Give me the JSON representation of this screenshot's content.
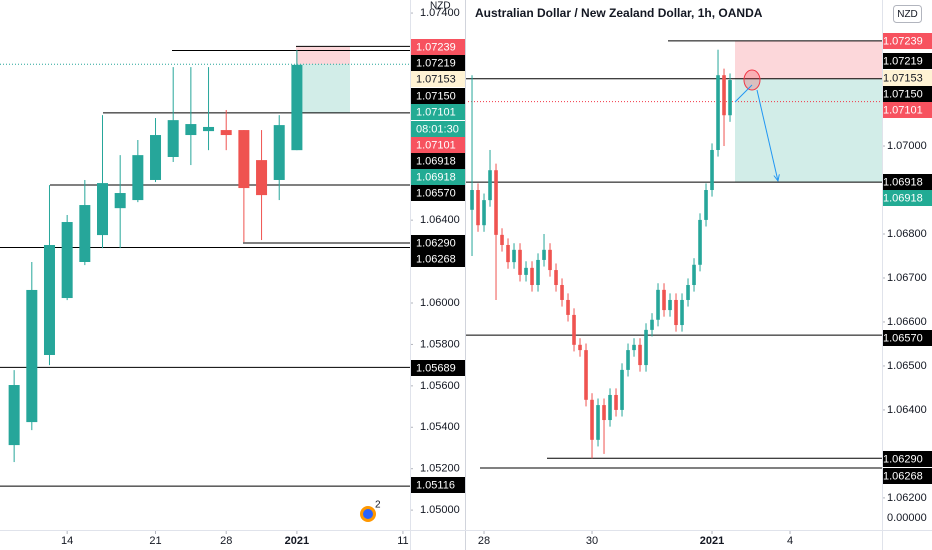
{
  "chart_data": [
    {
      "type": "candlestick",
      "currency": "NZD",
      "up_color": "#26a69a",
      "down_color": "#ef5350",
      "xlim": [
        -0.8,
        22.4
      ],
      "ylim": [
        1.04904,
        1.07463
      ],
      "xticks": [
        {
          "value": 3,
          "label": "14"
        },
        {
          "value": 8,
          "label": "21"
        },
        {
          "value": 12,
          "label": "28"
        },
        {
          "value": 16,
          "label": "2021"
        },
        {
          "value": 22,
          "label": "11"
        }
      ],
      "yticks": [
        {
          "value": 1.074,
          "label": "1.07400"
        },
        {
          "value": 1.064,
          "label": "1.06400"
        },
        {
          "value": 1.06,
          "label": "1.06000"
        },
        {
          "value": 1.058,
          "label": "1.05800"
        },
        {
          "value": 1.056,
          "label": "1.05600"
        },
        {
          "value": 1.054,
          "label": "1.05400"
        },
        {
          "value": 1.052,
          "label": "1.05200"
        },
        {
          "value": 1.05,
          "label": "1.05000"
        }
      ],
      "open": [
        1.05314,
        1.05425,
        1.05749,
        1.06024,
        1.06198,
        1.06328,
        1.06458,
        1.06497,
        1.06594,
        1.06705,
        1.06811,
        1.0683,
        1.06835,
        1.06835,
        1.0669,
        1.06594,
        1.06738
      ],
      "high": [
        1.05676,
        1.06198,
        1.06569,
        1.06425,
        1.06594,
        1.06907,
        1.06714,
        1.06787,
        1.06893,
        1.07139,
        1.07139,
        1.07139,
        1.06932,
        1.06835,
        1.06835,
        1.06907,
        1.07221
      ],
      "low": [
        1.05232,
        1.05386,
        1.057,
        1.06014,
        1.06183,
        1.06265,
        1.06265,
        1.06487,
        1.06584,
        1.06681,
        1.06666,
        1.06738,
        1.06738,
        1.06294,
        1.06304,
        1.06497,
        1.06738
      ],
      "close": [
        1.05604,
        1.06063,
        1.0628,
        1.06391,
        1.06473,
        1.06579,
        1.06531,
        1.06714,
        1.06811,
        1.06883,
        1.06864,
        1.0685,
        1.06811,
        1.06555,
        1.06521,
        1.06859,
        1.0715
      ],
      "position": {
        "stop": 1.07239,
        "entry": 1.07153,
        "target": 1.06918
      },
      "countdown": "08:01:30",
      "levels": [
        {
          "value": 1.07239,
          "label": "1.07239",
          "color": "#f7525f"
        },
        {
          "value": 1.07219,
          "label": "1.07219",
          "color": "#000000"
        },
        {
          "value": 1.07153,
          "label": "1.07153",
          "color": "#fff3d4"
        },
        {
          "value": 1.0715,
          "label": "1.07150",
          "color": "#000000"
        },
        {
          "value": 1.07101,
          "label": "1.07101",
          "color": "#22ab94"
        },
        {
          "value": 1.07101,
          "label": "1.07101",
          "color": "#f7525f"
        },
        {
          "value": 1.06918,
          "label": "1.06918",
          "color": "#000000"
        },
        {
          "value": 1.06918,
          "label": "1.06918",
          "color": "#22ab94"
        },
        {
          "value": 1.0657,
          "label": "1.06570",
          "color": "#000000"
        },
        {
          "value": 1.0629,
          "label": "1.06290",
          "color": "#000000"
        },
        {
          "value": 1.06268,
          "label": "1.06268",
          "color": "#000000"
        },
        {
          "value": 1.05689,
          "label": "1.05689",
          "color": "#000000"
        },
        {
          "value": 1.05116,
          "label": "1.05116",
          "color": "#000000"
        }
      ]
    },
    {
      "type": "candlestick",
      "title": "Australian Dollar / New Zealand Dollar, 1h, OANDA",
      "currency": "NZD",
      "pane_label": "0.00000",
      "up_color": "#26a69a",
      "down_color": "#ef5350",
      "xlim": [
        -1.17,
        68.33
      ],
      "ylim": [
        1.06127,
        1.07332
      ],
      "xticks": [
        {
          "value": 2,
          "label": "28"
        },
        {
          "value": 20,
          "label": "30"
        },
        {
          "value": 40,
          "label": "2021"
        },
        {
          "value": 53,
          "label": "4"
        }
      ],
      "yticks": [
        {
          "value": 1.07,
          "label": "1.07000"
        },
        {
          "value": 1.068,
          "label": "1.06800"
        },
        {
          "value": 1.067,
          "label": "1.06700"
        },
        {
          "value": 1.066,
          "label": "1.06600"
        },
        {
          "value": 1.065,
          "label": "1.06500"
        },
        {
          "value": 1.064,
          "label": "1.06400"
        },
        {
          "value": 1.062,
          "label": "1.06200"
        }
      ],
      "open": [
        1.06855,
        1.069,
        1.0682,
        1.06877,
        1.06945,
        1.06798,
        1.06775,
        1.06736,
        1.06764,
        1.06707,
        1.06723,
        1.06684,
        1.06741,
        1.06764,
        1.06718,
        1.06684,
        1.0665,
        1.06616,
        1.06548,
        1.06536,
        1.06423,
        1.06332,
        1.06411,
        1.06377,
        1.06434,
        1.064,
        1.06491,
        1.06536,
        1.06548,
        1.06502,
        1.06582,
        1.06605,
        1.06673,
        1.06627,
        1.0665,
        1.06593,
        1.0665,
        1.06684,
        1.0673,
        1.06832,
        1.069,
        1.06991,
        1.07161,
        1.0707
      ],
      "high": [
        1.07161,
        1.06915,
        1.06892,
        1.06991,
        1.0696,
        1.06813,
        1.0679,
        1.06779,
        1.06779,
        1.06738,
        1.06738,
        1.06756,
        1.068,
        1.06779,
        1.06733,
        1.06699,
        1.06665,
        1.06631,
        1.06563,
        1.06551,
        1.06438,
        1.06426,
        1.06426,
        1.06449,
        1.06449,
        1.06506,
        1.06551,
        1.06563,
        1.06563,
        1.06597,
        1.0662,
        1.06688,
        1.06688,
        1.06665,
        1.06665,
        1.06665,
        1.06699,
        1.06745,
        1.06847,
        1.06915,
        1.07006,
        1.07219,
        1.07176,
        1.07165
      ],
      "low": [
        1.0675,
        1.06805,
        1.06805,
        1.06862,
        1.0665,
        1.0676,
        1.06721,
        1.06721,
        1.06692,
        1.06692,
        1.06669,
        1.06669,
        1.06726,
        1.06703,
        1.06669,
        1.06635,
        1.06601,
        1.06533,
        1.06521,
        1.06408,
        1.0629,
        1.06317,
        1.063,
        1.06362,
        1.06385,
        1.06385,
        1.06476,
        1.06521,
        1.06487,
        1.06487,
        1.06567,
        1.0659,
        1.06612,
        1.06612,
        1.06578,
        1.06578,
        1.06635,
        1.06669,
        1.06715,
        1.06817,
        1.06885,
        1.06976,
        1.07,
        1.07055
      ],
      "close": [
        1.069,
        1.0682,
        1.06877,
        1.06945,
        1.06798,
        1.06775,
        1.06736,
        1.06764,
        1.06707,
        1.06723,
        1.06684,
        1.06741,
        1.06764,
        1.06718,
        1.06684,
        1.0665,
        1.06616,
        1.06548,
        1.06536,
        1.06423,
        1.06332,
        1.06411,
        1.06377,
        1.06434,
        1.064,
        1.06491,
        1.06536,
        1.06548,
        1.06502,
        1.06582,
        1.06605,
        1.06673,
        1.06627,
        1.0665,
        1.06593,
        1.0665,
        1.06684,
        1.0673,
        1.06832,
        1.069,
        1.06991,
        1.07161,
        1.0707,
        1.0715
      ],
      "position": {
        "stop": 1.07239,
        "entry": 1.07153,
        "target": 1.06918
      },
      "levels": [
        {
          "value": 1.07239,
          "label": "1.07239",
          "color": "#f7525f"
        },
        {
          "value": 1.07219,
          "label": "1.07219",
          "color": "#000000"
        },
        {
          "value": 1.07153,
          "label": "1.07153",
          "color": "#fff3d4"
        },
        {
          "value": 1.0715,
          "label": "1.07150",
          "color": "#000000"
        },
        {
          "value": 1.07101,
          "label": "1.07101",
          "color": "#f7525f"
        },
        {
          "value": 1.06918,
          "label": "1.06918",
          "color": "#000000"
        },
        {
          "value": 1.06918,
          "label": "1.06918",
          "color": "#22ab94"
        },
        {
          "value": 1.0657,
          "label": "1.06570",
          "color": "#000000"
        },
        {
          "value": 1.0629,
          "label": "1.06290",
          "color": "#000000"
        },
        {
          "value": 1.06268,
          "label": "1.06268",
          "color": "#000000"
        }
      ]
    }
  ],
  "events_badge": "2"
}
